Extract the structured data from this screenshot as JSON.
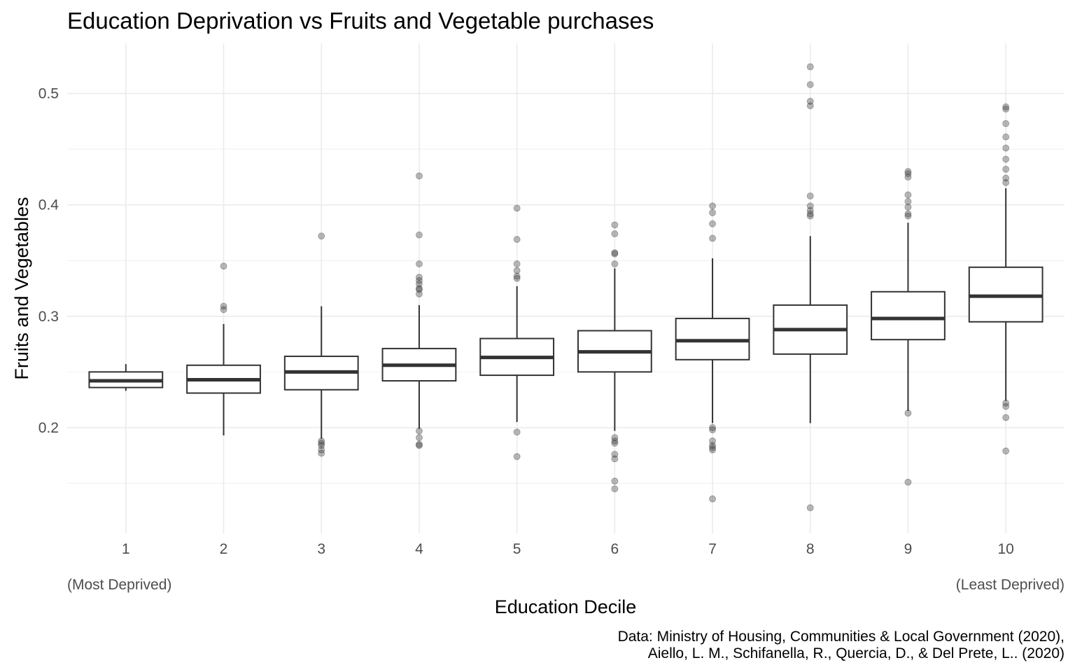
{
  "chart_data": {
    "type": "boxplot",
    "title": "Education Deprivation vs Fruits and Vegetable purchases",
    "xlabel": "Education Decile",
    "ylabel": "Fruits and Vegetables",
    "ylim": [
      0.105,
      0.545
    ],
    "y_ticks": [
      0.2,
      0.3,
      0.4,
      0.5
    ],
    "y_tick_labels": [
      "0.2",
      "0.3",
      "0.4",
      "0.5"
    ],
    "y_minor_ticks": [
      0.15,
      0.25,
      0.35,
      0.45
    ],
    "grid": true,
    "annotation_left": "(Most Deprived)",
    "annotation_right": "(Least Deprived)",
    "caption_line1": "Data: Ministry of Housing, Communities & Local Government (2020),",
    "caption_line2": "Aiello, L. M., Schifanella, R., Quercia, D., & Del Prete, L.. (2020)",
    "categories": [
      "1",
      "2",
      "3",
      "4",
      "5",
      "6",
      "7",
      "8",
      "9",
      "10"
    ],
    "boxes": [
      {
        "category": "1",
        "whisker_low": 0.233,
        "q1": 0.236,
        "median": 0.242,
        "q3": 0.25,
        "whisker_high": 0.257,
        "outliers": []
      },
      {
        "category": "2",
        "whisker_low": 0.193,
        "q1": 0.231,
        "median": 0.243,
        "q3": 0.256,
        "whisker_high": 0.293,
        "outliers": [
          0.345,
          0.309,
          0.306
        ]
      },
      {
        "category": "3",
        "whisker_low": 0.19,
        "q1": 0.234,
        "median": 0.25,
        "q3": 0.264,
        "whisker_high": 0.309,
        "outliers": [
          0.372,
          0.188,
          0.186,
          0.184,
          0.18,
          0.177
        ]
      },
      {
        "category": "4",
        "whisker_low": 0.199,
        "q1": 0.242,
        "median": 0.256,
        "q3": 0.271,
        "whisker_high": 0.31,
        "outliers": [
          0.426,
          0.373,
          0.347,
          0.335,
          0.332,
          0.329,
          0.325,
          0.324,
          0.32,
          0.197,
          0.191,
          0.185,
          0.184
        ]
      },
      {
        "category": "5",
        "whisker_low": 0.205,
        "q1": 0.247,
        "median": 0.263,
        "q3": 0.28,
        "whisker_high": 0.327,
        "outliers": [
          0.397,
          0.369,
          0.347,
          0.341,
          0.336,
          0.334,
          0.196,
          0.174
        ]
      },
      {
        "category": "6",
        "whisker_low": 0.197,
        "q1": 0.25,
        "median": 0.268,
        "q3": 0.287,
        "whisker_high": 0.343,
        "outliers": [
          0.382,
          0.374,
          0.357,
          0.356,
          0.347,
          0.191,
          0.188,
          0.186,
          0.176,
          0.172,
          0.152,
          0.145
        ]
      },
      {
        "category": "7",
        "whisker_low": 0.204,
        "q1": 0.261,
        "median": 0.278,
        "q3": 0.298,
        "whisker_high": 0.352,
        "outliers": [
          0.399,
          0.393,
          0.383,
          0.37,
          0.2,
          0.198,
          0.188,
          0.184,
          0.182,
          0.18,
          0.136
        ]
      },
      {
        "category": "8",
        "whisker_low": 0.204,
        "q1": 0.266,
        "median": 0.288,
        "q3": 0.31,
        "whisker_high": 0.372,
        "outliers": [
          0.524,
          0.508,
          0.493,
          0.489,
          0.408,
          0.399,
          0.395,
          0.392,
          0.39,
          0.128
        ]
      },
      {
        "category": "9",
        "whisker_low": 0.215,
        "q1": 0.279,
        "median": 0.298,
        "q3": 0.322,
        "whisker_high": 0.384,
        "outliers": [
          0.43,
          0.428,
          0.425,
          0.409,
          0.403,
          0.398,
          0.392,
          0.39,
          0.213,
          0.151
        ]
      },
      {
        "category": "10",
        "whisker_low": 0.224,
        "q1": 0.295,
        "median": 0.318,
        "q3": 0.344,
        "whisker_high": 0.415,
        "outliers": [
          0.488,
          0.486,
          0.473,
          0.461,
          0.451,
          0.441,
          0.432,
          0.424,
          0.42,
          0.222,
          0.219,
          0.209,
          0.179
        ]
      }
    ]
  }
}
